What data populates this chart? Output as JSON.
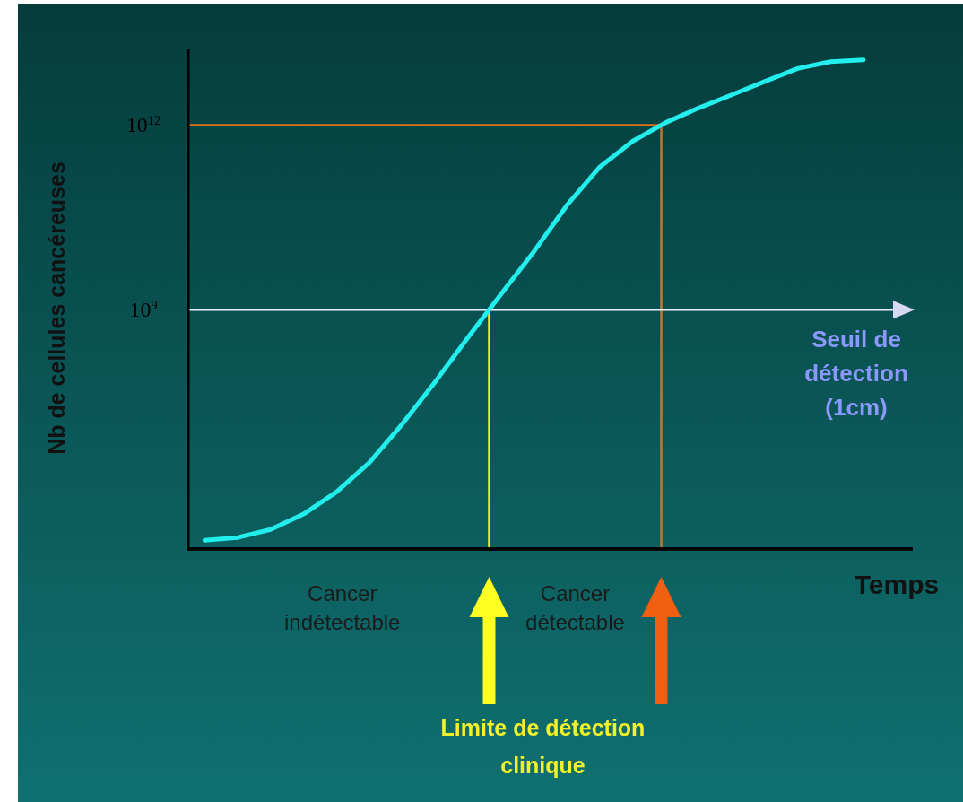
{
  "chart_data": {
    "type": "line",
    "xlabel": "Temps",
    "ylabel": "Nb de cellules cancéreuses",
    "log": "y",
    "ylim": [
      130000.0,
      17000000000000.0
    ],
    "yticks": [
      {
        "value": 1000000000.0,
        "label": "10$^{9}$"
      },
      {
        "value": 1000000000000.0,
        "label": "10$^{12}$"
      }
    ],
    "tick_labels": "y",
    "categories": [
      null,
      null,
      null,
      null,
      null,
      null,
      null,
      null,
      null,
      null,
      null,
      null,
      null,
      null,
      null,
      null,
      null,
      null,
      null,
      null,
      null,
      null
    ],
    "series": [
      {
        "color": "#22eeee",
        "values": [
          180000.0,
          200000.0,
          270000.0,
          480000.0,
          1100000.0,
          3300000.0,
          14000000.0,
          68000000.0,
          360000000.0,
          1800000000.0,
          8900000000.0,
          50000000000.0,
          210000000000.0,
          550000000000.0,
          1100000000000.0,
          1900000000000.0,
          3100000000000.0,
          5100000000000.0,
          8300000000000.0,
          10700000000000.0,
          11500000000000.0,
          null
        ]
      }
    ],
    "ref_lines": [
      {
        "axis": "y",
        "value": 1000000000000.0,
        "color": "#e0701a"
      },
      {
        "axis": "y",
        "value": 1000000000.0,
        "label": "Seuil de détection (1cm)",
        "color": "#f0f0ff"
      }
    ],
    "annotations": [
      "Cancer indétectable",
      "Cancer détectable",
      "Limite de détection clinique"
    ]
  }
}
